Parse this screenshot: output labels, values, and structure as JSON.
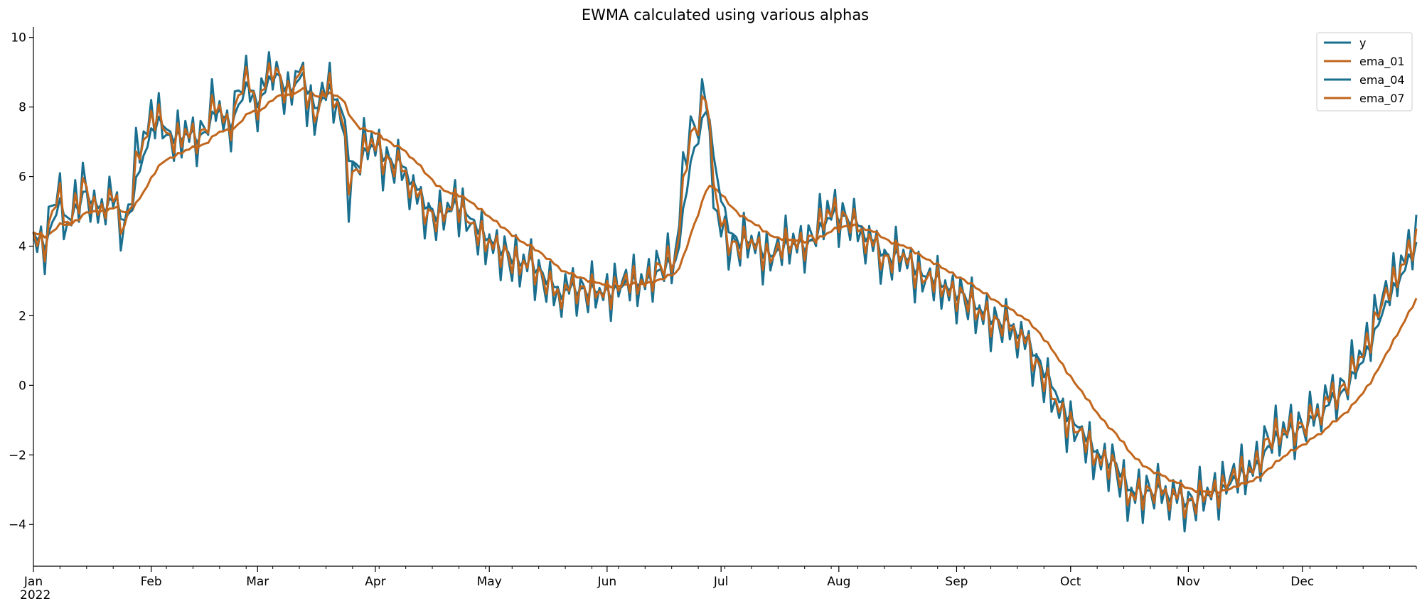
{
  "chart_data": {
    "type": "line",
    "title": "EWMA calculated using various alphas",
    "xlabel": "",
    "ylabel": "",
    "year_label": "2022",
    "x_start": "2022-01-01",
    "x_end": "2022-12-31",
    "xlim": [
      "2022-01-01",
      "2022-12-31"
    ],
    "ylim": [
      -5.2,
      10.3
    ],
    "y_ticks": [
      -4,
      -2,
      0,
      2,
      4,
      6,
      8,
      10
    ],
    "x_ticks": [
      {
        "date": "2022-01-01",
        "label": "Jan"
      },
      {
        "date": "2022-02-01",
        "label": "Feb"
      },
      {
        "date": "2022-03-01",
        "label": "Mar"
      },
      {
        "date": "2022-04-01",
        "label": "Apr"
      },
      {
        "date": "2022-05-01",
        "label": "May"
      },
      {
        "date": "2022-06-01",
        "label": "Jun"
      },
      {
        "date": "2022-07-01",
        "label": "Jul"
      },
      {
        "date": "2022-08-01",
        "label": "Aug"
      },
      {
        "date": "2022-09-01",
        "label": "Sep"
      },
      {
        "date": "2022-10-01",
        "label": "Oct"
      },
      {
        "date": "2022-11-01",
        "label": "Nov"
      },
      {
        "date": "2022-12-01",
        "label": "Dec"
      }
    ],
    "legend_position": "top-right",
    "grid": false,
    "y_anchors": [
      [
        "2022-01-01",
        4.2
      ],
      [
        "2022-01-04",
        4.0
      ],
      [
        "2022-01-07",
        5.6
      ],
      [
        "2022-01-10",
        4.4
      ],
      [
        "2022-01-14",
        6.0
      ],
      [
        "2022-01-17",
        4.8
      ],
      [
        "2022-01-21",
        5.5
      ],
      [
        "2022-01-25",
        4.4
      ],
      [
        "2022-01-28",
        6.5
      ],
      [
        "2022-02-02",
        8.0
      ],
      [
        "2022-02-06",
        6.8
      ],
      [
        "2022-02-10",
        7.4
      ],
      [
        "2022-02-14",
        7.0
      ],
      [
        "2022-02-18",
        8.2
      ],
      [
        "2022-02-21",
        7.2
      ],
      [
        "2022-02-25",
        8.9
      ],
      [
        "2022-03-01",
        8.0
      ],
      [
        "2022-03-05",
        9.3
      ],
      [
        "2022-03-09",
        8.1
      ],
      [
        "2022-03-12",
        9.2
      ],
      [
        "2022-03-16",
        7.5
      ],
      [
        "2022-03-19",
        8.7
      ],
      [
        "2022-03-23",
        7.8
      ],
      [
        "2022-03-25",
        5.5
      ],
      [
        "2022-03-30",
        7.1
      ],
      [
        "2022-04-03",
        6.5
      ],
      [
        "2022-04-08",
        6.2
      ],
      [
        "2022-04-13",
        5.1
      ],
      [
        "2022-04-18",
        4.7
      ],
      [
        "2022-04-22",
        5.4
      ],
      [
        "2022-04-27",
        4.3
      ],
      [
        "2022-05-02",
        4.1
      ],
      [
        "2022-05-07",
        3.4
      ],
      [
        "2022-05-12",
        3.5
      ],
      [
        "2022-05-18",
        2.6
      ],
      [
        "2022-05-24",
        2.8
      ],
      [
        "2022-05-30",
        2.6
      ],
      [
        "2022-06-05",
        2.9
      ],
      [
        "2022-06-10",
        3.0
      ],
      [
        "2022-06-16",
        3.4
      ],
      [
        "2022-06-19",
        3.6
      ],
      [
        "2022-06-22",
        7.2
      ],
      [
        "2022-06-25",
        7.6
      ],
      [
        "2022-06-27",
        8.4
      ],
      [
        "2022-06-30",
        4.5
      ],
      [
        "2022-07-04",
        4.0
      ],
      [
        "2022-07-09",
        4.1
      ],
      [
        "2022-07-14",
        3.6
      ],
      [
        "2022-07-19",
        4.2
      ],
      [
        "2022-07-24",
        4.0
      ],
      [
        "2022-07-29",
        5.0
      ],
      [
        "2022-08-03",
        4.8
      ],
      [
        "2022-08-08",
        4.2
      ],
      [
        "2022-08-13",
        3.6
      ],
      [
        "2022-08-18",
        3.7
      ],
      [
        "2022-08-23",
        3.0
      ],
      [
        "2022-08-28",
        2.9
      ],
      [
        "2022-09-02",
        2.5
      ],
      [
        "2022-09-07",
        2.0
      ],
      [
        "2022-09-12",
        1.8
      ],
      [
        "2022-09-17",
        1.5
      ],
      [
        "2022-09-22",
        0.6
      ],
      [
        "2022-09-27",
        -0.6
      ],
      [
        "2022-10-02",
        -1.3
      ],
      [
        "2022-10-07",
        -2.0
      ],
      [
        "2022-10-12",
        -2.3
      ],
      [
        "2022-10-16",
        -3.3
      ],
      [
        "2022-10-21",
        -3.0
      ],
      [
        "2022-10-26",
        -3.1
      ],
      [
        "2022-10-31",
        -3.4
      ],
      [
        "2022-11-05",
        -3.2
      ],
      [
        "2022-11-10",
        -2.9
      ],
      [
        "2022-11-15",
        -2.5
      ],
      [
        "2022-11-18",
        -2.3
      ],
      [
        "2022-11-22",
        -1.6
      ],
      [
        "2022-11-27",
        -1.3
      ],
      [
        "2022-12-02",
        -1.1
      ],
      [
        "2022-12-07",
        -0.5
      ],
      [
        "2022-12-12",
        0.0
      ],
      [
        "2022-12-17",
        1.0
      ],
      [
        "2022-12-21",
        2.2
      ],
      [
        "2022-12-25",
        3.0
      ],
      [
        "2022-12-28",
        3.8
      ],
      [
        "2022-12-31",
        4.3
      ]
    ],
    "y_noise": [
      0.2,
      -0.3,
      0.5,
      -0.8,
      0.6,
      0.1,
      -0.4,
      0.9,
      -0.6,
      0.3,
      -0.2,
      0.7,
      -0.9,
      0.4,
      0.0,
      -0.5,
      0.8,
      -0.3,
      0.2,
      -0.7,
      0.5,
      -0.1,
      0.6,
      -0.8,
      0.3,
      0.1,
      -0.6,
      0.9,
      -0.4,
      0.2,
      -0.2,
      0.5,
      -0.9,
      0.7,
      -0.3,
      0.1,
      0.4,
      -0.5,
      0.8,
      -0.7
    ],
    "series": [
      {
        "name": "y",
        "color": "#1a6f8f",
        "alpha": 1.0
      },
      {
        "name": "ema_01",
        "color": "#c1661d",
        "alpha": 0.1
      },
      {
        "name": "ema_04",
        "color": "#1a6f8f",
        "alpha": 0.4
      },
      {
        "name": "ema_07",
        "color": "#c1661d",
        "alpha": 0.7
      }
    ]
  }
}
